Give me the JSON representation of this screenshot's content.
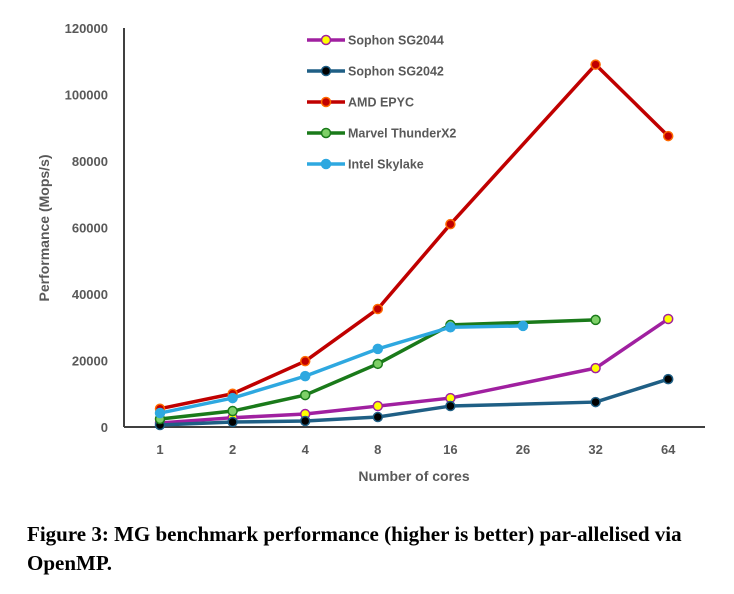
{
  "caption": "Figure 3: MG benchmark performance (higher is better) par-allelised via OpenMP.",
  "chart_data": {
    "type": "line",
    "title": "",
    "xlabel": "Number of cores",
    "ylabel": "Performance (Mops/s)",
    "categories": [
      "1",
      "2",
      "4",
      "8",
      "16",
      "26",
      "32",
      "64"
    ],
    "ylim": [
      0,
      120000
    ],
    "yticks": [
      0,
      20000,
      40000,
      60000,
      80000,
      100000,
      120000
    ],
    "grid": false,
    "legend_position": "top-center",
    "series": [
      {
        "name": "Sophon SG2044",
        "color": "#a020a0",
        "marker_fill": "#ffff00",
        "marker_edge": "#a020a0",
        "values": [
          1200,
          2800,
          3900,
          6300,
          8700,
          null,
          17700,
          32500
        ]
      },
      {
        "name": "Sophon SG2042",
        "color": "#1f5f85",
        "marker_fill": "#000000",
        "marker_edge": "#1f5f85",
        "values": [
          600,
          1500,
          1800,
          3000,
          6300,
          null,
          7500,
          14400
        ]
      },
      {
        "name": "AMD EPYC",
        "color": "#c00000",
        "marker_fill": "#c00000",
        "marker_edge": "#ff6a00",
        "values": [
          5500,
          10000,
          19800,
          35500,
          61000,
          null,
          109000,
          87500
        ]
      },
      {
        "name": "Marvel ThunderX2",
        "color": "#1a7a1a",
        "marker_fill": "#7ed067",
        "marker_edge": "#1a7a1a",
        "values": [
          2400,
          4800,
          9600,
          19000,
          30700,
          null,
          32200,
          null
        ]
      },
      {
        "name": "Intel Skylake",
        "color": "#2ea8e0",
        "marker_fill": "#2ea8e0",
        "marker_edge": "#2ea8e0",
        "values": [
          4200,
          8700,
          15300,
          23500,
          30000,
          30400,
          null,
          null
        ]
      }
    ]
  }
}
